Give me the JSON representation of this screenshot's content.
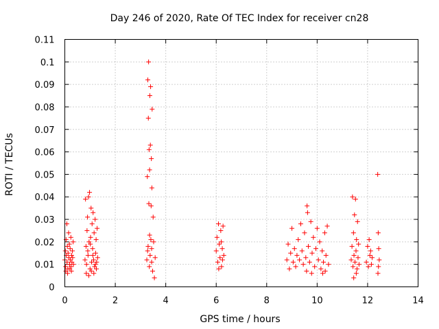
{
  "chart_data": {
    "type": "scatter",
    "title": "Day 246 of 2020, Rate Of TEC Index for receiver cn28",
    "xlabel": "GPS time / hours",
    "ylabel": "ROTI / TECUs",
    "xlim": [
      0,
      14
    ],
    "ylim": [
      0,
      0.11
    ],
    "xticks": [
      "0",
      "2",
      "4",
      "6",
      "8",
      "10",
      "12",
      "14"
    ],
    "yticks": [
      "0",
      "0.01",
      "0.02",
      "0.03",
      "0.04",
      "0.05",
      "0.06",
      "0.07",
      "0.08",
      "0.09",
      "0.1",
      "0.11"
    ],
    "grid": true,
    "marker": "+",
    "color": "#ff0000",
    "series": [
      {
        "name": "ROTI",
        "points": [
          [
            0.0,
            0.012
          ],
          [
            0.02,
            0.016
          ],
          [
            0.03,
            0.009
          ],
          [
            0.05,
            0.021
          ],
          [
            0.06,
            0.014
          ],
          [
            0.08,
            0.028
          ],
          [
            0.09,
            0.011
          ],
          [
            0.1,
            0.018
          ],
          [
            0.12,
            0.008
          ],
          [
            0.13,
            0.015
          ],
          [
            0.15,
            0.024
          ],
          [
            0.16,
            0.013
          ],
          [
            0.18,
            0.019
          ],
          [
            0.19,
            0.01
          ],
          [
            0.21,
            0.017
          ],
          [
            0.22,
            0.012
          ],
          [
            0.24,
            0.022
          ],
          [
            0.25,
            0.009
          ],
          [
            0.27,
            0.014
          ],
          [
            0.28,
            0.011
          ],
          [
            0.3,
            0.016
          ],
          [
            0.31,
            0.013
          ],
          [
            0.33,
            0.02
          ],
          [
            0.34,
            0.01
          ],
          [
            0.04,
            0.007
          ],
          [
            0.11,
            0.006
          ],
          [
            0.2,
            0.008
          ],
          [
            0.26,
            0.007
          ],
          [
            0.8,
            0.012
          ],
          [
            0.82,
            0.039
          ],
          [
            0.84,
            0.018
          ],
          [
            0.86,
            0.01
          ],
          [
            0.88,
            0.025
          ],
          [
            0.9,
            0.031
          ],
          [
            0.92,
            0.014
          ],
          [
            0.94,
            0.04
          ],
          [
            0.96,
            0.02
          ],
          [
            0.98,
            0.042
          ],
          [
            1.0,
            0.008
          ],
          [
            1.02,
            0.022
          ],
          [
            1.04,
            0.035
          ],
          [
            1.06,
            0.011
          ],
          [
            1.08,
            0.028
          ],
          [
            1.1,
            0.017
          ],
          [
            1.12,
            0.033
          ],
          [
            1.14,
            0.012
          ],
          [
            1.16,
            0.024
          ],
          [
            1.18,
            0.009
          ],
          [
            1.2,
            0.03
          ],
          [
            1.22,
            0.015
          ],
          [
            1.24,
            0.021
          ],
          [
            1.26,
            0.011
          ],
          [
            1.28,
            0.026
          ],
          [
            1.3,
            0.013
          ],
          [
            0.85,
            0.006
          ],
          [
            0.95,
            0.005
          ],
          [
            1.05,
            0.007
          ],
          [
            1.15,
            0.006
          ],
          [
            1.25,
            0.008
          ],
          [
            0.91,
            0.016
          ],
          [
            1.01,
            0.019
          ],
          [
            1.11,
            0.014
          ],
          [
            1.21,
            0.01
          ],
          [
            3.25,
            0.012
          ],
          [
            3.27,
            0.049
          ],
          [
            3.29,
            0.092
          ],
          [
            3.3,
            0.018
          ],
          [
            3.31,
            0.075
          ],
          [
            3.32,
            0.1
          ],
          [
            3.33,
            0.037
          ],
          [
            3.34,
            0.061
          ],
          [
            3.35,
            0.009
          ],
          [
            3.36,
            0.052
          ],
          [
            3.37,
            0.085
          ],
          [
            3.38,
            0.014
          ],
          [
            3.39,
            0.063
          ],
          [
            3.4,
            0.089
          ],
          [
            3.41,
            0.021
          ],
          [
            3.42,
            0.036
          ],
          [
            3.43,
            0.057
          ],
          [
            3.44,
            0.011
          ],
          [
            3.45,
            0.044
          ],
          [
            3.46,
            0.079
          ],
          [
            3.48,
            0.007
          ],
          [
            3.5,
            0.031
          ],
          [
            3.52,
            0.02
          ],
          [
            3.55,
            0.004
          ],
          [
            3.58,
            0.013
          ],
          [
            3.28,
            0.016
          ],
          [
            3.36,
            0.023
          ],
          [
            3.44,
            0.017
          ],
          [
            6.0,
            0.016
          ],
          [
            6.03,
            0.022
          ],
          [
            6.06,
            0.011
          ],
          [
            6.09,
            0.028
          ],
          [
            6.12,
            0.019
          ],
          [
            6.15,
            0.013
          ],
          [
            6.18,
            0.025
          ],
          [
            6.21,
            0.009
          ],
          [
            6.24,
            0.017
          ],
          [
            6.27,
            0.027
          ],
          [
            6.3,
            0.014
          ],
          [
            6.1,
            0.008
          ],
          [
            6.2,
            0.02
          ],
          [
            6.25,
            0.012
          ],
          [
            8.8,
            0.012
          ],
          [
            8.85,
            0.019
          ],
          [
            8.9,
            0.008
          ],
          [
            8.95,
            0.015
          ],
          [
            9.0,
            0.026
          ],
          [
            9.05,
            0.011
          ],
          [
            9.1,
            0.017
          ],
          [
            9.15,
            0.009
          ],
          [
            9.2,
            0.014
          ],
          [
            9.25,
            0.021
          ],
          [
            9.3,
            0.012
          ],
          [
            9.35,
            0.028
          ],
          [
            9.4,
            0.016
          ],
          [
            9.45,
            0.01
          ],
          [
            9.5,
            0.024
          ],
          [
            9.55,
            0.013
          ],
          [
            9.6,
            0.036
          ],
          [
            9.65,
            0.018
          ],
          [
            9.7,
            0.011
          ],
          [
            9.75,
            0.029
          ],
          [
            9.8,
            0.015
          ],
          [
            9.85,
            0.022
          ],
          [
            9.9,
            0.009
          ],
          [
            9.95,
            0.017
          ],
          [
            10.0,
            0.026
          ],
          [
            10.05,
            0.012
          ],
          [
            10.1,
            0.02
          ],
          [
            10.15,
            0.008
          ],
          [
            10.2,
            0.016
          ],
          [
            10.25,
            0.011
          ],
          [
            10.3,
            0.024
          ],
          [
            10.35,
            0.014
          ],
          [
            10.4,
            0.027
          ],
          [
            10.45,
            0.01
          ],
          [
            9.62,
            0.033
          ],
          [
            9.58,
            0.007
          ],
          [
            9.78,
            0.006
          ],
          [
            10.22,
            0.006
          ],
          [
            10.32,
            0.007
          ],
          [
            11.35,
            0.012
          ],
          [
            11.38,
            0.018
          ],
          [
            11.4,
            0.04
          ],
          [
            11.42,
            0.009
          ],
          [
            11.44,
            0.024
          ],
          [
            11.46,
            0.014
          ],
          [
            11.48,
            0.032
          ],
          [
            11.5,
            0.011
          ],
          [
            11.52,
            0.039
          ],
          [
            11.54,
            0.016
          ],
          [
            11.56,
            0.021
          ],
          [
            11.58,
            0.008
          ],
          [
            11.6,
            0.029
          ],
          [
            11.62,
            0.013
          ],
          [
            11.64,
            0.019
          ],
          [
            11.66,
            0.01
          ],
          [
            11.45,
            0.004
          ],
          [
            11.55,
            0.006
          ],
          [
            11.95,
            0.011
          ],
          [
            12.0,
            0.018
          ],
          [
            12.03,
            0.009
          ],
          [
            12.06,
            0.021
          ],
          [
            12.09,
            0.014
          ],
          [
            12.12,
            0.016
          ],
          [
            12.15,
            0.01
          ],
          [
            12.18,
            0.013
          ],
          [
            12.4,
            0.05
          ],
          [
            12.42,
            0.024
          ],
          [
            12.44,
            0.017
          ],
          [
            12.46,
            0.012
          ],
          [
            12.43,
            0.009
          ],
          [
            12.41,
            0.006
          ]
        ]
      }
    ]
  }
}
